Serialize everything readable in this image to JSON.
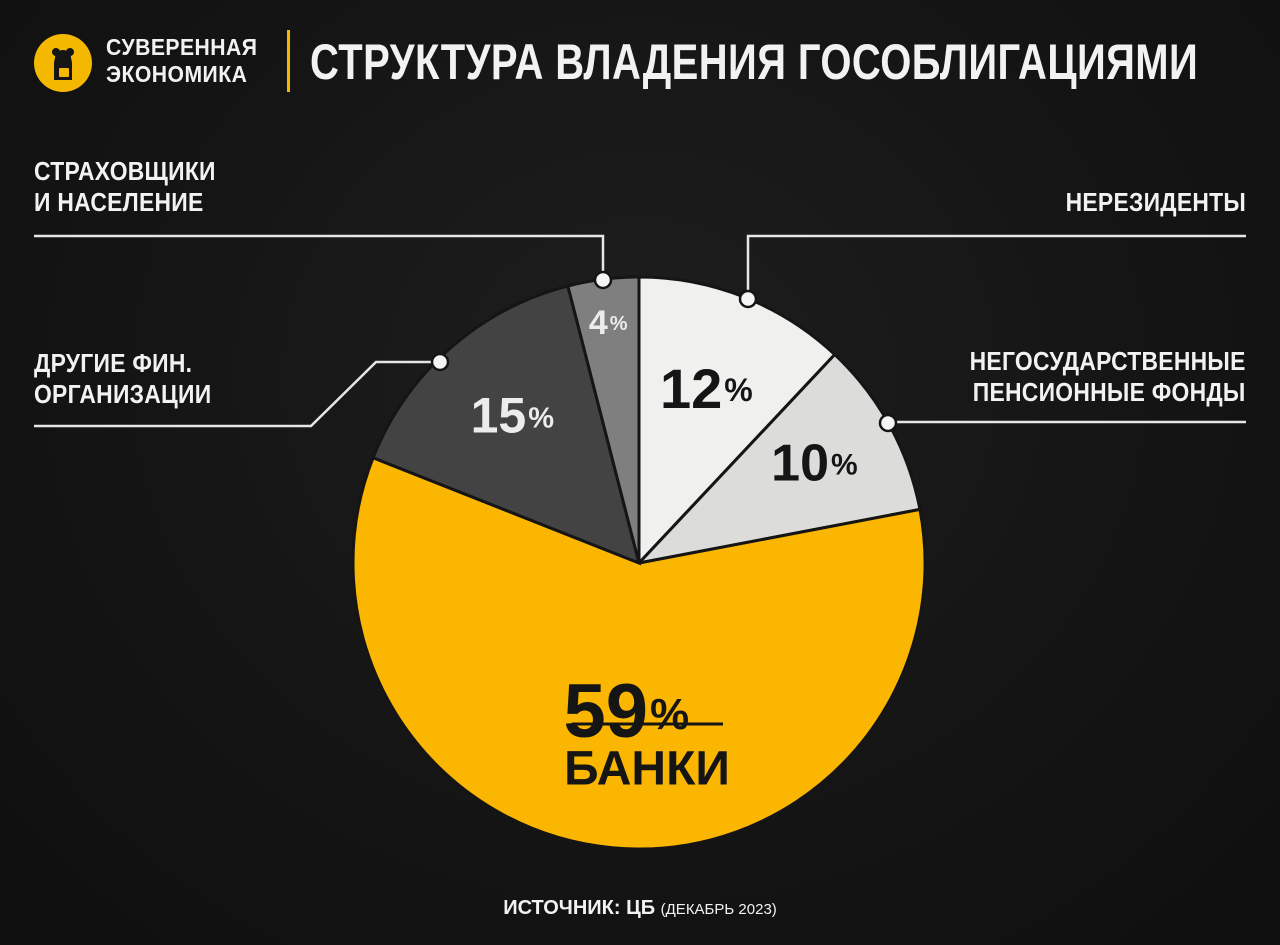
{
  "brand": {
    "line1": "СУВЕРЕННАЯ",
    "line2": "ЭКОНОМИКА",
    "accent": "#f5b800"
  },
  "title": "СТРУКТУРА ВЛАДЕНИЯ ГОСОБЛИГАЦИЯМИ",
  "labels": {
    "insurers": [
      "СТРАХОВЩИКИ",
      "И НАСЕЛЕНИЕ"
    ],
    "nonresidents": [
      "НЕРЕЗИДЕНТЫ"
    ],
    "other_fin": [
      "ДРУГИЕ ФИН.",
      "ОРГАНИЗАЦИИ"
    ],
    "npf": [
      "НЕГОСУДАРСТВЕННЫЕ",
      "ПЕНСИОННЫЕ ФОНДЫ"
    ]
  },
  "source": {
    "prefix": "ИСТОЧНИК:",
    "value": "ЦБ",
    "note": "(ДЕКАБРЬ 2023)"
  },
  "chart_data": {
    "type": "pie",
    "title": "СТРУКТУРА ВЛАДЕНИЯ ГОСОБЛИГАЦИЯМИ",
    "unit": "%",
    "slices": [
      {
        "label": "НЕРЕЗИДЕНТЫ",
        "value": 12,
        "color": "#f0f0ee"
      },
      {
        "label": "НЕГОСУДАРСТВЕННЫЕ ПЕНСИОННЫЕ ФОНДЫ",
        "value": 10,
        "color": "#dcdcda"
      },
      {
        "label": "БАНКИ",
        "value": 59,
        "color": "#fbb602"
      },
      {
        "label": "ДРУГИЕ ФИН. ОРГАНИЗАЦИИ",
        "value": 15,
        "color": "#434343"
      },
      {
        "label": "СТРАХОВЩИКИ И НАСЕЛЕНИЕ",
        "value": 4,
        "color": "#7f7f7f"
      }
    ],
    "banks_label": "БАНКИ",
    "start": "12 o'clock, clockwise"
  }
}
